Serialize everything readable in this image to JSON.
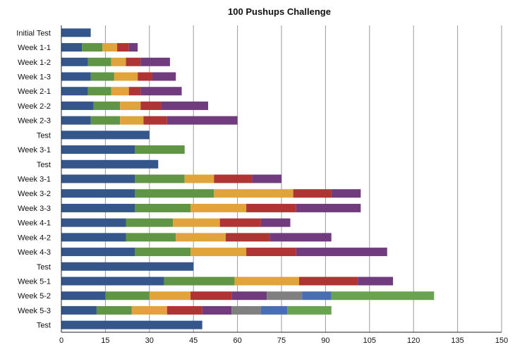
{
  "chart_data": {
    "type": "bar",
    "orientation": "horizontal",
    "stacked": true,
    "title": "100 Pushups Challenge",
    "xlabel": "",
    "ylabel": "",
    "xlim": [
      0,
      150
    ],
    "xticks": [
      0,
      15,
      30,
      45,
      60,
      75,
      90,
      105,
      120,
      135,
      150
    ],
    "grid": true,
    "legend": "none",
    "set_colors": [
      "#34568b",
      "#5f9545",
      "#e0a43a",
      "#b03433",
      "#703c7e",
      "#808080",
      "#4a6fb0",
      "#69a351"
    ],
    "categories": [
      "Initial Test",
      "Week 1-1",
      "Week 1-2",
      "Week 1-3",
      "Week 2-1",
      "Week 2-2",
      "Week 2-3",
      "Test",
      "Week 3-1",
      "Test",
      "Week 3-1",
      "Week 3-2",
      "Week 3-3",
      "Week 4-1",
      "Week 4-2",
      "Week 4-3",
      "Test",
      "Week 5-1",
      "Week 5-2",
      "Week 5-3",
      "Test"
    ],
    "values": [
      [
        10
      ],
      [
        7,
        7,
        5,
        4,
        3
      ],
      [
        9,
        8,
        5,
        5,
        10
      ],
      [
        10,
        8,
        8,
        5,
        8
      ],
      [
        9,
        8,
        6,
        4,
        14
      ],
      [
        11,
        9,
        7,
        7,
        16
      ],
      [
        10,
        10,
        8,
        8,
        24
      ],
      [
        30
      ],
      [
        25,
        17
      ],
      [
        33
      ],
      [
        25,
        17,
        10,
        13,
        10
      ],
      [
        25,
        27,
        27,
        13,
        10
      ],
      [
        25,
        19,
        19,
        17,
        22
      ],
      [
        22,
        16,
        16,
        14,
        10
      ],
      [
        22,
        17,
        17,
        15,
        21
      ],
      [
        25,
        19,
        19,
        17,
        31
      ],
      [
        45
      ],
      [
        35,
        24,
        22,
        20,
        12
      ],
      [
        15,
        15,
        14,
        14,
        12,
        12,
        10,
        35
      ],
      [
        12,
        12,
        12,
        12,
        10,
        10,
        9,
        15
      ],
      [
        48
      ]
    ]
  }
}
